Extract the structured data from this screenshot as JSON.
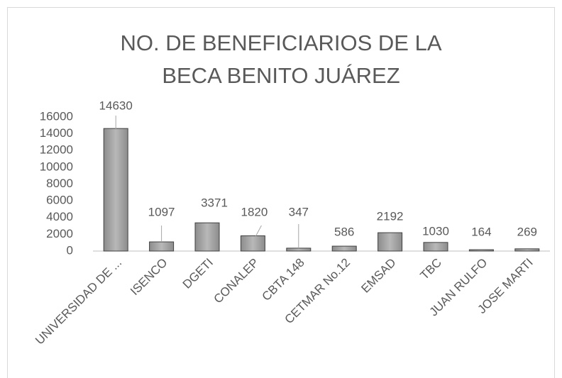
{
  "chart_data": {
    "type": "bar",
    "title": "NO. DE BENEFICIARIOS DE LA BECA BENITO JUÁREZ",
    "categories": [
      "UNIVERSIDAD DE ...",
      "ISENCO",
      "DGETI",
      "CONALEP",
      "CBTA 148",
      "CETMAR No.12",
      "EMSAD",
      "TBC",
      "JUAN RULFO",
      "JOSE MARTI"
    ],
    "values": [
      14630,
      1097,
      3371,
      1820,
      347,
      586,
      2192,
      1030,
      164,
      269
    ],
    "color": "#a6a6a6",
    "ylim": [
      0,
      16000
    ],
    "yticks": [
      0,
      2000,
      4000,
      6000,
      8000,
      10000,
      12000,
      14000,
      16000
    ],
    "grid": false
  }
}
